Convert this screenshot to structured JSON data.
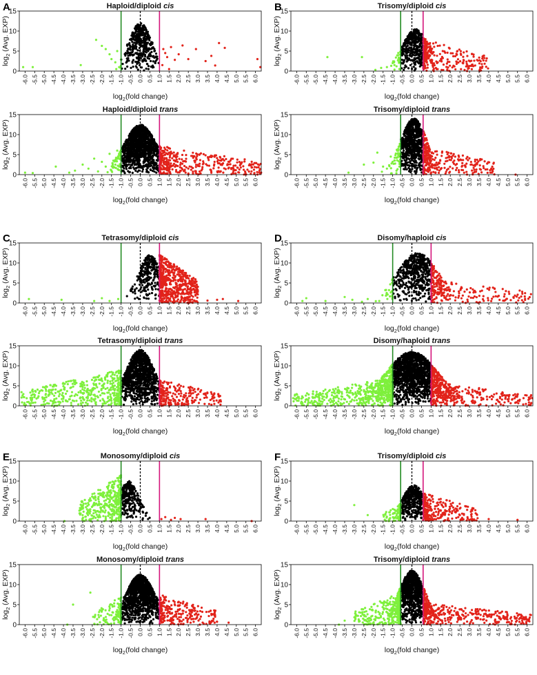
{
  "figure": {
    "panel_letters": [
      "A",
      "B",
      "C",
      "D",
      "E",
      "F"
    ],
    "ylabel_base": "log",
    "ylabel_sub": "2",
    "ylabel_rest": " (Avg. EXP)",
    "xlabel_base": "log",
    "xlabel_sub": "2",
    "xlabel_rest": "(fold change)",
    "colors": {
      "down": "#7ef03c",
      "neutral": "#000000",
      "up": "#e2231a",
      "green_line": "#228b22",
      "magenta_line": "#d4147a",
      "zero_line": "#000000",
      "axis": "#000000"
    }
  },
  "chart_data": [
    {
      "type": "scatter",
      "panel": "A",
      "title_prefix": "Haploid/diploid ",
      "title_italic": "cis",
      "xlim": [
        -6.3,
        6.3
      ],
      "ylim": [
        0,
        15
      ],
      "yticks": [
        0,
        5,
        10,
        15
      ],
      "xticks": [
        "-6.0",
        "-5.5",
        "-5.0",
        "-4.5",
        "-4.0",
        "-3.5",
        "-3.0",
        "-2.5",
        "-2.0",
        "-1.5",
        "-1.0",
        "-0.5",
        "0.0",
        "0.5",
        "1.0",
        "1.5",
        "2.0",
        "2.5",
        "3.0",
        "3.5",
        "4.0",
        "4.5",
        "5.0",
        "5.5",
        "6.0"
      ],
      "thresholds": {
        "down": -1.0,
        "zero": 0.0,
        "up": 1.0
      },
      "cloud": {
        "n": 420,
        "center": 0.0,
        "spread": 0.4,
        "peak": 12
      },
      "down_points": [
        [
          -6.1,
          1.0
        ],
        [
          -5.6,
          1.0
        ],
        [
          -3.1,
          1.5
        ],
        [
          -2.3,
          7.8
        ],
        [
          -2.0,
          6.3
        ],
        [
          -1.8,
          5.5
        ],
        [
          -1.6,
          4.2
        ],
        [
          -1.5,
          3.0
        ],
        [
          -1.3,
          2.2
        ],
        [
          -1.2,
          5.0
        ],
        [
          -1.1,
          1.0
        ],
        [
          -1.25,
          0.5
        ]
      ],
      "up_points": [
        [
          1.2,
          5.5
        ],
        [
          1.3,
          4.5
        ],
        [
          1.4,
          3.5
        ],
        [
          1.6,
          6.0
        ],
        [
          1.8,
          2.8
        ],
        [
          2.0,
          4.2
        ],
        [
          2.2,
          6.4
        ],
        [
          2.5,
          3.0
        ],
        [
          2.9,
          5.5
        ],
        [
          3.4,
          2.5
        ],
        [
          3.7,
          3.8
        ],
        [
          3.9,
          1.4
        ],
        [
          4.1,
          7.0
        ],
        [
          4.4,
          5.8
        ],
        [
          6.1,
          3.0
        ],
        [
          6.25,
          1.0
        ],
        [
          1.15,
          1.5
        ],
        [
          1.5,
          0.5
        ]
      ]
    },
    {
      "type": "scatter",
      "panel": "A",
      "title_prefix": "Haploid/diploid ",
      "title_italic": "trans",
      "xlim": [
        -6.3,
        6.3
      ],
      "ylim": [
        0,
        15
      ],
      "yticks": [
        0,
        5,
        10,
        15
      ],
      "xticks": [
        "-6.0",
        "-5.5",
        "-5.0",
        "-4.5",
        "-4.0",
        "-3.5",
        "-3.0",
        "-2.5",
        "-2.0",
        "-1.5",
        "-1.0",
        "-0.5",
        "0.0",
        "0.5",
        "1.0",
        "1.5",
        "2.0",
        "2.5",
        "3.0",
        "3.5",
        "4.0",
        "4.5",
        "5.0",
        "5.5",
        "6.0"
      ],
      "thresholds": {
        "down": -1.0,
        "zero": 0.0,
        "up": 1.0
      },
      "cloud": {
        "n": 1400,
        "center": 0.0,
        "spread": 0.55,
        "peak": 12.5
      },
      "down_points": [
        [
          -6.0,
          0.5
        ],
        [
          -5.6,
          0.4
        ],
        [
          -4.4,
          2.0
        ],
        [
          -3.7,
          0.5
        ],
        [
          -3.4,
          1.0
        ],
        [
          -3.0,
          2.5
        ],
        [
          -2.7,
          1.5
        ],
        [
          -2.4,
          4.0
        ],
        [
          -2.2,
          0.8
        ],
        [
          -2.0,
          3.2
        ],
        [
          -1.8,
          2.0
        ],
        [
          -1.6,
          5.2
        ],
        [
          -1.5,
          1.0
        ],
        [
          -1.4,
          3.5
        ],
        [
          -1.3,
          2.5
        ],
        [
          -1.2,
          6.0
        ],
        [
          -1.1,
          4.0
        ],
        [
          -1.7,
          0.6
        ]
      ],
      "up_random": {
        "n": 330,
        "xmax": 6.3,
        "ymax": 7.2
      }
    },
    {
      "type": "scatter",
      "panel": "B",
      "title_prefix": "Trisomy/diploid ",
      "title_italic": "cis",
      "xlim": [
        -6.3,
        6.3
      ],
      "ylim": [
        0,
        15
      ],
      "yticks": [
        0,
        5,
        10,
        15
      ],
      "xticks": [
        "-6.0",
        "-5.5",
        "-5.0",
        "-4.5",
        "-4.0",
        "-3.5",
        "-3.0",
        "-2.5",
        "-2.0",
        "-1.5",
        "-1.0",
        "-0.5",
        "0.0",
        "0.5",
        "1.0",
        "1.5",
        "2.0",
        "2.5",
        "3.0",
        "3.5",
        "4.0",
        "4.5",
        "5.0",
        "5.5",
        "6.0"
      ],
      "thresholds": {
        "down": -0.585,
        "zero": 0.0,
        "up": 0.585
      },
      "cloud": {
        "n": 520,
        "center": 0.2,
        "spread": 0.45,
        "peak": 10.5
      },
      "down_points": [
        [
          -4.4,
          3.5
        ],
        [
          -2.6,
          3.5
        ],
        [
          -1.9,
          0.3
        ],
        [
          -1.6,
          0.8
        ],
        [
          -1.3,
          1.0
        ],
        [
          -1.0,
          2.0
        ],
        [
          -0.8,
          1.2
        ],
        [
          -0.7,
          3.0
        ],
        [
          -0.65,
          0.5
        ]
      ],
      "up_random": {
        "n": 170,
        "xmax": 4.0,
        "ymax": 8.0
      }
    },
    {
      "type": "scatter",
      "panel": "B",
      "title_prefix": "Trisomy/diploid ",
      "title_italic": "trans",
      "xlim": [
        -6.3,
        6.3
      ],
      "ylim": [
        0,
        15
      ],
      "yticks": [
        0,
        5,
        10,
        15
      ],
      "xticks": [
        "-6.0",
        "-5.5",
        "-5.0",
        "-4.5",
        "-4.0",
        "-3.5",
        "-3.0",
        "-2.5",
        "-2.0",
        "-1.5",
        "-1.0",
        "-0.5",
        "0.0",
        "0.5",
        "1.0",
        "1.5",
        "2.0",
        "2.5",
        "3.0",
        "3.5",
        "4.0",
        "4.5",
        "5.0",
        "5.5",
        "6.0"
      ],
      "thresholds": {
        "down": -0.585,
        "zero": 0.0,
        "up": 0.585
      },
      "cloud": {
        "n": 900,
        "center": 0.1,
        "spread": 0.45,
        "peak": 14
      },
      "down_points": [
        [
          -3.3,
          0.5
        ],
        [
          -2.5,
          2.5
        ],
        [
          -2.0,
          3.0
        ],
        [
          -1.8,
          5.5
        ],
        [
          -1.5,
          2.0
        ],
        [
          -1.3,
          1.5
        ],
        [
          -1.1,
          4.5
        ],
        [
          -0.9,
          3.5
        ],
        [
          -0.8,
          1.0
        ],
        [
          -0.7,
          6.0
        ],
        [
          -0.65,
          2.0
        ]
      ],
      "up_random": {
        "n": 210,
        "xmax": 4.3,
        "ymax": 7.0
      },
      "extra_up": [
        [
          5.4,
          0.0
        ],
        [
          3.3,
          2.5
        ],
        [
          2.6,
          2.0
        ]
      ]
    },
    {
      "type": "scatter",
      "panel": "C",
      "title_prefix": "Tetrasomy/diploid ",
      "title_italic": "cis",
      "xlim": [
        -6.3,
        6.3
      ],
      "ylim": [
        0,
        15
      ],
      "yticks": [
        0,
        5,
        10,
        15
      ],
      "xticks": [
        "-6.0",
        "-5.5",
        "-5.0",
        "-4.5",
        "-4.0",
        "-3.5",
        "-3.0",
        "-2.5",
        "-2.0",
        "-1.5",
        "-1.0",
        "-0.5",
        "0.0",
        "0.5",
        "1.0",
        "1.5",
        "2.0",
        "2.5",
        "3.0",
        "3.5",
        "4.0",
        "4.5",
        "5.0",
        "5.5",
        "6.0"
      ],
      "thresholds": {
        "down": -1.0,
        "zero": 0.0,
        "up": 1.0
      },
      "cloud": {
        "n": 300,
        "center": 0.5,
        "spread": 0.4,
        "peak": 12
      },
      "down_points": [
        [
          -5.8,
          1.0
        ],
        [
          -4.1,
          0.8
        ],
        [
          -2.4,
          0.5
        ],
        [
          -2.0,
          1.2
        ],
        [
          -1.6,
          0.5
        ],
        [
          -1.15,
          1.0
        ]
      ],
      "up_random": {
        "n": 560,
        "xmax": 3.0,
        "ymax": 12.2
      },
      "extra_up": [
        [
          4.0,
          0.8
        ],
        [
          4.3,
          1.0
        ],
        [
          5.1,
          0.5
        ],
        [
          3.5,
          0.6
        ]
      ]
    },
    {
      "type": "scatter",
      "panel": "C",
      "title_prefix": "Tetrasomy/diploid ",
      "title_italic": "trans",
      "xlim": [
        -6.3,
        6.3
      ],
      "ylim": [
        0,
        15
      ],
      "yticks": [
        0,
        5,
        10,
        15
      ],
      "xticks": [
        "-6.0",
        "-5.5",
        "-5.0",
        "-4.5",
        "-4.0",
        "-3.5",
        "-3.0",
        "-2.5",
        "-2.0",
        "-1.5",
        "-1.0",
        "-0.5",
        "0.0",
        "0.5",
        "1.0",
        "1.5",
        "2.0",
        "2.5",
        "3.0",
        "3.5",
        "4.0",
        "4.5",
        "5.0",
        "5.5",
        "6.0"
      ],
      "thresholds": {
        "down": -1.0,
        "zero": 0.0,
        "up": 1.0
      },
      "cloud": {
        "n": 1200,
        "center": 0.0,
        "spread": 0.5,
        "peak": 14
      },
      "down_random": {
        "n": 430,
        "xmin": -6.2,
        "ymax": 9.0
      },
      "up_random": {
        "n": 210,
        "xmax": 4.3,
        "ymax": 6.5
      }
    },
    {
      "type": "scatter",
      "panel": "D",
      "title_prefix": "Disomy/haploid ",
      "title_italic": "cis",
      "xlim": [
        -6.3,
        6.3
      ],
      "ylim": [
        0,
        15
      ],
      "yticks": [
        0,
        5,
        10,
        15
      ],
      "xticks": [
        "-6.0",
        "-5.5",
        "-5.0",
        "-4.5",
        "-4.0",
        "-3.5",
        "-3.0",
        "-2.5",
        "-2.0",
        "-1.5",
        "-1.0",
        "-0.5",
        "0.0",
        "0.5",
        "1.0",
        "1.5",
        "2.0",
        "2.5",
        "3.0",
        "3.5",
        "4.0",
        "4.5",
        "5.0",
        "5.5",
        "6.0"
      ],
      "thresholds": {
        "down": -1.0,
        "zero": 0.0,
        "up": 1.0
      },
      "cloud": {
        "n": 650,
        "center": 0.3,
        "spread": 0.7,
        "peak": 12.5
      },
      "down_points": [
        [
          -5.7,
          0.5
        ],
        [
          -5.5,
          1.2
        ],
        [
          -4.5,
          0.5
        ],
        [
          -3.5,
          1.5
        ],
        [
          -3.1,
          0.8
        ],
        [
          -2.6,
          0.3
        ],
        [
          -2.3,
          1.0
        ],
        [
          -1.7,
          0.5
        ]
      ],
      "up_random": {
        "n": 150,
        "xmax": 6.3,
        "ymax": 6.0
      }
    },
    {
      "type": "scatter",
      "panel": "D",
      "title_prefix": "Disomy/haploid ",
      "title_italic": "trans",
      "xlim": [
        -6.3,
        6.3
      ],
      "ylim": [
        0,
        15
      ],
      "yticks": [
        0,
        5,
        10,
        15
      ],
      "xticks": [
        "-6.0",
        "-5.5",
        "-5.0",
        "-4.5",
        "-4.0",
        "-3.5",
        "-3.0",
        "-2.5",
        "-2.0",
        "-1.5",
        "-1.0",
        "-0.5",
        "0.0",
        "0.5",
        "1.0",
        "1.5",
        "2.0",
        "2.5",
        "3.0",
        "3.5",
        "4.0",
        "4.5",
        "5.0",
        "5.5",
        "6.0"
      ],
      "thresholds": {
        "down": -1.0,
        "zero": 0.0,
        "up": 1.0
      },
      "cloud": {
        "n": 1800,
        "center": 0.0,
        "spread": 0.9,
        "peak": 13.5
      },
      "down_random": {
        "n": 420,
        "xmin": -6.2,
        "ymax": 7.0
      },
      "up_random": {
        "n": 230,
        "xmax": 6.3,
        "ymax": 6.0
      }
    },
    {
      "type": "scatter",
      "panel": "E",
      "title_prefix": "Monosomy/diploid ",
      "title_italic": "cis",
      "xlim": [
        -6.3,
        6.3
      ],
      "ylim": [
        0,
        15
      ],
      "yticks": [
        0,
        5,
        10,
        15
      ],
      "xticks": [
        "-6.0",
        "-5.5",
        "-5.0",
        "-4.5",
        "-4.0",
        "-3.5",
        "-3.0",
        "-2.5",
        "-2.0",
        "-1.5",
        "-1.0",
        "-0.5",
        "0.0",
        "0.5",
        "1.0",
        "1.5",
        "2.0",
        "2.5",
        "3.0",
        "3.5",
        "4.0",
        "4.5",
        "5.0",
        "5.5",
        "6.0"
      ],
      "thresholds": {
        "down": -1.0,
        "zero": 0.0,
        "up": 1.0
      },
      "cloud": {
        "n": 300,
        "center": -0.6,
        "spread": 0.35,
        "peak": 10
      },
      "down_random": {
        "n": 330,
        "xmin": -3.2,
        "ymax": 11.5
      },
      "up_points": [
        [
          1.1,
          0.5
        ],
        [
          1.3,
          1.0
        ],
        [
          1.6,
          0.3
        ],
        [
          1.8,
          0.8
        ],
        [
          2.1,
          0.5
        ],
        [
          3.4,
          0.5
        ],
        [
          5.8,
          0.0
        ]
      ],
      "extra_down": [
        [
          -3.95,
          0.0
        ]
      ]
    },
    {
      "type": "scatter",
      "panel": "E",
      "title_prefix": "Monosomy/diploid ",
      "title_italic": "trans",
      "xlim": [
        -6.3,
        6.3
      ],
      "ylim": [
        0,
        15
      ],
      "yticks": [
        0,
        5,
        10,
        15
      ],
      "xticks": [
        "-6.0",
        "-5.5",
        "-5.0",
        "-4.5",
        "-4.0",
        "-3.5",
        "-3.0",
        "-2.5",
        "-2.0",
        "-1.5",
        "-1.0",
        "-0.5",
        "0.0",
        "0.5",
        "1.0",
        "1.5",
        "2.0",
        "2.5",
        "3.0",
        "3.5",
        "4.0",
        "4.5",
        "5.0",
        "5.5",
        "6.0"
      ],
      "thresholds": {
        "down": -1.0,
        "zero": 0.0,
        "up": 1.0
      },
      "cloud": {
        "n": 1200,
        "center": 0.0,
        "spread": 0.5,
        "peak": 12.5
      },
      "down_random": {
        "n": 90,
        "xmin": -2.5,
        "ymax": 7.0
      },
      "up_random": {
        "n": 210,
        "xmax": 4.0,
        "ymax": 7.5
      },
      "extra_down": [
        [
          -3.8,
          0.0
        ],
        [
          -3.5,
          5.0
        ],
        [
          -2.6,
          8.0
        ]
      ],
      "extra_up": [
        [
          4.6,
          0.5
        ]
      ]
    },
    {
      "type": "scatter",
      "panel": "F",
      "title_prefix": "Trisomy/diploid ",
      "title_italic": "cis",
      "xlim": [
        -6.3,
        6.3
      ],
      "ylim": [
        0,
        15
      ],
      "yticks": [
        0,
        5,
        10,
        15
      ],
      "xticks": [
        "-6.0",
        "-5.5",
        "-5.0",
        "-4.5",
        "-4.0",
        "-3.5",
        "-3.0",
        "-2.5",
        "-2.0",
        "-1.5",
        "-1.0",
        "-0.5",
        "0.0",
        "0.5",
        "1.0",
        "1.5",
        "2.0",
        "2.5",
        "3.0",
        "3.5",
        "4.0",
        "4.5",
        "5.0",
        "5.5",
        "6.0"
      ],
      "thresholds": {
        "down": -0.585,
        "zero": 0.0,
        "up": 0.585
      },
      "cloud": {
        "n": 450,
        "center": 0.1,
        "spread": 0.4,
        "peak": 9
      },
      "down_random": {
        "n": 50,
        "xmin": -1.5,
        "ymax": 4.5
      },
      "up_random": {
        "n": 200,
        "xmax": 3.5,
        "ymax": 7.0
      },
      "extra_down": [
        [
          -3.0,
          4.0
        ],
        [
          -2.3,
          1.5
        ]
      ],
      "extra_up": [
        [
          4.0,
          0.5
        ],
        [
          5.5,
          0.3
        ]
      ]
    },
    {
      "type": "scatter",
      "panel": "F",
      "title_prefix": "Trisomy/diploid ",
      "title_italic": "trans",
      "xlim": [
        -6.3,
        6.3
      ],
      "ylim": [
        0,
        15
      ],
      "yticks": [
        0,
        5,
        10,
        15
      ],
      "xticks": [
        "-6.0",
        "-5.5",
        "-5.0",
        "-4.5",
        "-4.0",
        "-3.5",
        "-3.0",
        "-2.5",
        "-2.0",
        "-1.5",
        "-1.0",
        "-0.5",
        "0.0",
        "0.5",
        "1.0",
        "1.5",
        "2.0",
        "2.5",
        "3.0",
        "3.5",
        "4.0",
        "4.5",
        "5.0",
        "5.5",
        "6.0"
      ],
      "thresholds": {
        "down": -0.585,
        "zero": 0.0,
        "up": 0.585
      },
      "cloud": {
        "n": 1100,
        "center": 0.0,
        "spread": 0.45,
        "peak": 13.5
      },
      "down_random": {
        "n": 230,
        "xmin": -3.0,
        "ymax": 8.0
      },
      "up_random": {
        "n": 330,
        "xmax": 6.2,
        "ymax": 5.5
      },
      "extra_down": [
        [
          -3.8,
          0.0
        ],
        [
          -3.5,
          1.0
        ]
      ]
    }
  ]
}
